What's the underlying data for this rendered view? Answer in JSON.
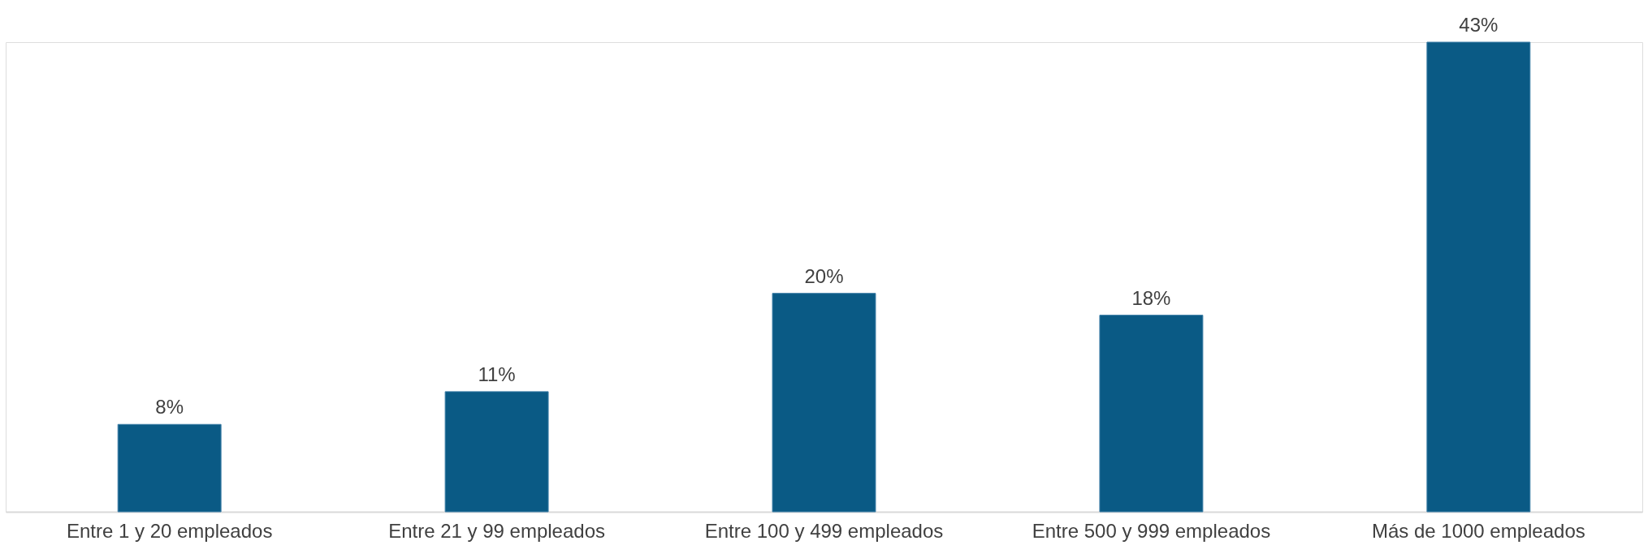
{
  "chart_data": {
    "type": "bar",
    "categories": [
      "Entre 1 y 20 empleados",
      "Entre 21 y 99 empleados",
      "Entre 100 y 499 empleados",
      "Entre 500 y 999 empleados",
      "Más de 1000 empleados"
    ],
    "values": [
      8,
      11,
      20,
      18,
      43
    ],
    "value_labels": [
      "8%",
      "11%",
      "20%",
      "18%",
      "43%"
    ],
    "color": "#0a5a85"
  }
}
